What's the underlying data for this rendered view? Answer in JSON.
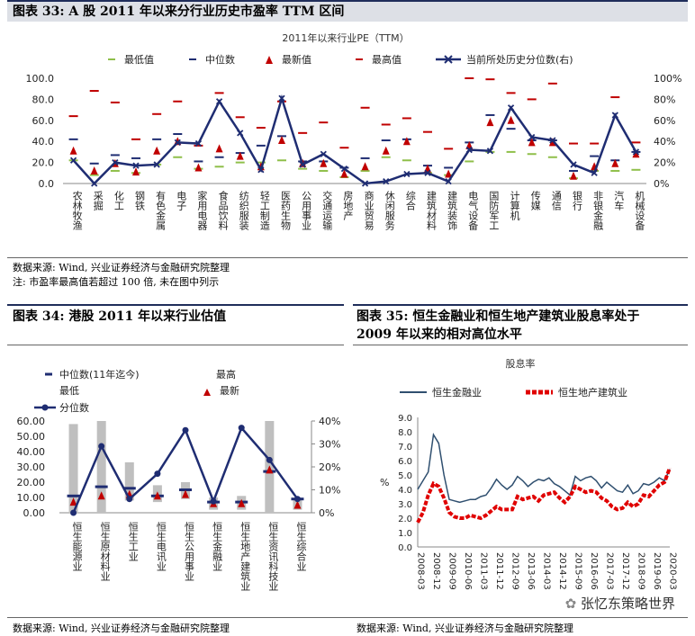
{
  "header1": {
    "title": "图表 33: A 股 2011 年以来分行业历史市盈率 TTM 区间"
  },
  "header2": {
    "title": "图表 34: 港股 2011 年以来行业估值"
  },
  "header3": {
    "line1": "图表 35: 恒生金融业和恒生地产建筑业股息率处于",
    "line2": "2009 年以来的相对高位水平"
  },
  "source1": "数据来源: Wind, 兴业证券经济与金融研究院整理",
  "note1": "注: 市盈率最高值若超过 100 倍, 未在图中列示",
  "source2": "数据来源: Wind, 兴业证券经济与金融研究院整理",
  "source3": "数据来源: Wind, 兴业证券经济与金融研究院整理",
  "watermark": "张忆东策略世界",
  "colors": {
    "navy": "#1f2d72",
    "red": "#c00000",
    "green": "#8fbf4a",
    "grey": "#bfbfbf",
    "blue": "#2f4f6f"
  },
  "chart_data": [
    {
      "type": "mixed",
      "title": "2011年以来行业PE（TTM）",
      "legend": [
        "最低值",
        "中位数",
        "最新值",
        "最高值",
        "当前所处历史分位数(右)"
      ],
      "ylim_left": [
        0,
        100
      ],
      "ylim_right": [
        0,
        100
      ],
      "yticks_left": [
        "0.0",
        "20.0",
        "40.0",
        "60.0",
        "80.0",
        "100.0"
      ],
      "yticks_right": [
        "0%",
        "20%",
        "40%",
        "60%",
        "80%",
        "100%"
      ],
      "categories": [
        "农林牧渔",
        "采掘",
        "化工",
        "钢铁",
        "有色金属",
        "电子",
        "家用电器",
        "食品饮料",
        "纺织服装",
        "轻工制造",
        "医药生物",
        "公用事业",
        "交通运输",
        "房地产",
        "商业贸易",
        "休闲服务",
        "综合",
        "建筑材料",
        "建筑装饰",
        "电气设备",
        "国防军工",
        "计算机",
        "传媒",
        "通信",
        "银行",
        "非银金融",
        "汽车",
        "机械设备"
      ],
      "min": [
        22,
        8,
        12,
        10,
        18,
        25,
        14,
        16,
        20,
        20,
        22,
        14,
        12,
        6,
        12,
        25,
        22,
        10,
        8,
        21,
        30,
        30,
        28,
        25,
        5,
        12,
        12,
        13
      ],
      "median": [
        42,
        19,
        27,
        24,
        42,
        47,
        21,
        25,
        29,
        36,
        45,
        21,
        21,
        15,
        24,
        41,
        42,
        17,
        15,
        39,
        65,
        52,
        41,
        41,
        12,
        26,
        22,
        30
      ],
      "latest": [
        31,
        12,
        19,
        11,
        31,
        40,
        15,
        33,
        26,
        16,
        41,
        19,
        19,
        9,
        16,
        31,
        40,
        14,
        9,
        36,
        58,
        60,
        39,
        39,
        7,
        16,
        19,
        28
      ],
      "max": [
        64,
        88,
        77,
        42,
        66,
        78,
        36,
        86,
        63,
        53,
        78,
        48,
        58,
        34,
        72,
        56,
        62,
        49,
        33,
        100,
        99,
        86,
        80,
        95,
        38,
        38,
        82,
        39
      ],
      "percentile": [
        22,
        0,
        20,
        17,
        18,
        39,
        38,
        78,
        48,
        13,
        81,
        18,
        28,
        14,
        0,
        2,
        9,
        10,
        2,
        32,
        31,
        72,
        44,
        41,
        18,
        10,
        65,
        30
      ]
    },
    {
      "type": "mixed",
      "legend": [
        "中位数(11年迄今)",
        "最高",
        "最低",
        "最新",
        "分位数"
      ],
      "ylim_left": [
        0,
        60
      ],
      "ylim_right": [
        0,
        40
      ],
      "yticks_left": [
        "0.00",
        "10.00",
        "20.00",
        "30.00",
        "40.00",
        "50.00",
        "60.00"
      ],
      "yticks_right": [
        "0%",
        "10%",
        "20%",
        "30%",
        "40%"
      ],
      "categories": [
        "恒生能源业",
        "恒生原材料业",
        "恒生工业",
        "恒生电讯业",
        "恒生公用事业",
        "恒生金融业",
        "恒生地产建筑业",
        "恒生资讯科技业",
        "恒生综合业"
      ],
      "max": [
        58,
        60,
        33,
        18,
        20,
        10,
        11,
        60,
        9
      ],
      "min": [
        0,
        0,
        8,
        7,
        9,
        2,
        2,
        0,
        2
      ],
      "median": [
        11,
        17,
        16,
        11,
        15,
        7,
        7,
        27,
        9
      ],
      "latest": [
        7,
        11,
        12,
        11,
        12,
        6,
        6,
        28,
        5
      ],
      "percentile": [
        0,
        29,
        6,
        17,
        36,
        5,
        37,
        23,
        6
      ]
    },
    {
      "type": "line",
      "title": "股息率",
      "ylabel": "%",
      "ylim": [
        0,
        9
      ],
      "yticks": [
        "0.0",
        "1.0",
        "2.0",
        "3.0",
        "4.0",
        "5.0",
        "6.0",
        "7.0",
        "8.0",
        "9.0"
      ],
      "xticks": [
        "2008-03",
        "2008-12",
        "2009-09",
        "2010-06",
        "2011-03",
        "2011-12",
        "2012-09",
        "2013-06",
        "2014-03",
        "2014-12",
        "2015-09",
        "2016-06",
        "2017-03",
        "2017-12",
        "2018-09",
        "2019-06",
        "2020-03"
      ],
      "series": [
        {
          "name": "恒生金融业",
          "values": [
            4.0,
            4.6,
            5.2,
            7.8,
            7.2,
            5.0,
            3.3,
            3.2,
            3.1,
            3.2,
            3.3,
            3.3,
            3.5,
            3.6,
            4.1,
            4.7,
            4.3,
            4.0,
            4.3,
            4.9,
            4.6,
            4.2,
            4.5,
            4.7,
            4.6,
            4.8,
            4.4,
            4.2,
            3.9,
            3.6,
            4.9,
            4.6,
            4.8,
            4.9,
            4.6,
            4.1,
            4.5,
            4.2,
            3.9,
            3.8,
            4.3,
            3.7,
            3.9,
            4.4,
            4.3,
            4.5,
            4.8,
            4.6,
            5.4
          ]
        },
        {
          "name": "恒生地产建筑业",
          "values": [
            1.7,
            2.4,
            3.6,
            4.4,
            4.2,
            3.4,
            2.4,
            2.1,
            2.0,
            2.0,
            2.2,
            2.1,
            2.0,
            2.2,
            2.5,
            2.8,
            2.6,
            2.6,
            2.6,
            3.5,
            3.3,
            3.4,
            3.5,
            3.2,
            3.6,
            3.7,
            3.8,
            3.4,
            3.1,
            3.5,
            4.2,
            4.0,
            3.8,
            3.9,
            3.8,
            3.4,
            3.2,
            2.8,
            2.6,
            2.7,
            3.1,
            2.8,
            3.0,
            3.6,
            3.5,
            3.9,
            4.3,
            4.5,
            5.5
          ]
        }
      ]
    }
  ]
}
